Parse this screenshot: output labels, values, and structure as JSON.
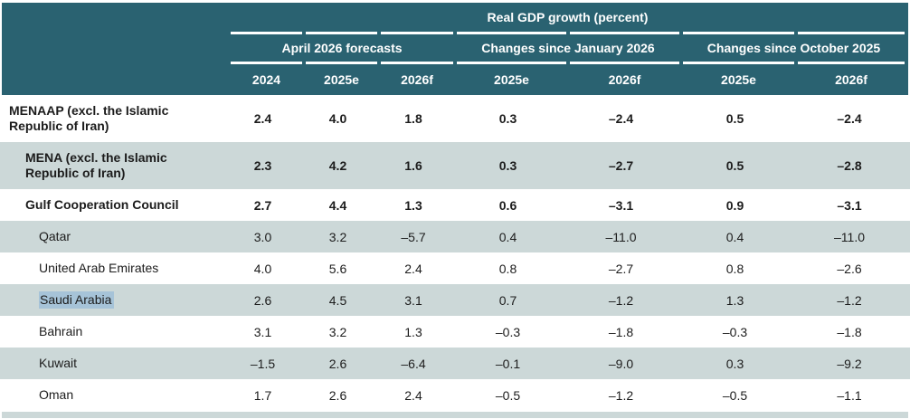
{
  "table": {
    "title": "Real GDP growth (percent)",
    "groups": [
      {
        "label": "April 2026 forecasts"
      },
      {
        "label": "Changes since January 2026"
      },
      {
        "label": "Changes since October 2025"
      }
    ],
    "year_columns": [
      "2024",
      "2025e",
      "2026f",
      "2025e",
      "2026f",
      "2025e",
      "2026f"
    ],
    "rows": [
      {
        "label": "MENAAP (excl. the Islamic Republic of Iran)",
        "bold": true,
        "shaded": false,
        "values": [
          "2.4",
          "4.0",
          "1.8",
          "0.3",
          "–2.4",
          "0.5",
          "–2.4"
        ]
      },
      {
        "label": "MENA (excl. the Islamic Republic of Iran)",
        "bold": true,
        "shaded": true,
        "values": [
          "2.3",
          "4.2",
          "1.6",
          "0.3",
          "–2.7",
          "0.5",
          "–2.8"
        ]
      },
      {
        "label": "Gulf Cooperation Council",
        "bold": true,
        "shaded": false,
        "values": [
          "2.7",
          "4.4",
          "1.3",
          "0.6",
          "–3.1",
          "0.9",
          "–3.1"
        ]
      },
      {
        "label": "Qatar",
        "bold": false,
        "shaded": true,
        "values": [
          "3.0",
          "3.2",
          "–5.7",
          "0.4",
          "–11.0",
          "0.4",
          "–11.0"
        ]
      },
      {
        "label": "United Arab Emirates",
        "bold": false,
        "shaded": false,
        "values": [
          "4.0",
          "5.6",
          "2.4",
          "0.8",
          "–2.7",
          "0.8",
          "–2.6"
        ]
      },
      {
        "label": "Saudi Arabia",
        "bold": false,
        "shaded": true,
        "highlighted": true,
        "values": [
          "2.6",
          "4.5",
          "3.1",
          "0.7",
          "–1.2",
          "1.3",
          "–1.2"
        ]
      },
      {
        "label": "Bahrain",
        "bold": false,
        "shaded": false,
        "values": [
          "3.1",
          "3.2",
          "1.3",
          "–0.3",
          "–1.8",
          "–0.3",
          "–1.8"
        ]
      },
      {
        "label": "Kuwait",
        "bold": false,
        "shaded": true,
        "values": [
          "–1.5",
          "2.6",
          "–6.4",
          "–0.1",
          "–9.0",
          "0.3",
          "–9.2"
        ]
      },
      {
        "label": "Oman",
        "bold": false,
        "shaded": false,
        "values": [
          "1.7",
          "2.6",
          "2.4",
          "–0.5",
          "–1.2",
          "–0.5",
          "–1.1"
        ]
      }
    ],
    "colors": {
      "header_teal": "#2A6271",
      "shaded_row": "#CCD8D8",
      "selection_highlight": "#A6C3D8",
      "header_text": "#FFFFFF",
      "body_text": "#1C1C1C"
    }
  }
}
